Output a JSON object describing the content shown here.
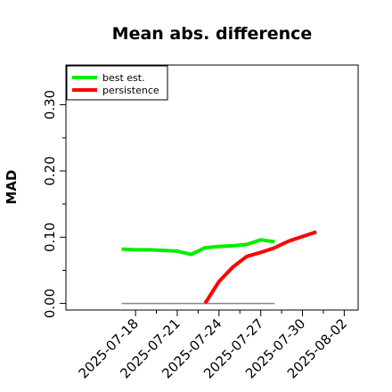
{
  "chart_data": {
    "type": "line",
    "title": "Mean abs. difference",
    "xlabel": "",
    "ylabel": "MAD",
    "x_ticks": [
      "2025-07-18",
      "2025-07-21",
      "2025-07-24",
      "2025-07-27",
      "2025-07-30",
      "2025-08-02"
    ],
    "y_ticks": [
      "0.00",
      "0.10",
      "0.20",
      "0.30"
    ],
    "xlim": [
      "2025-07-13",
      "2025-08-03"
    ],
    "ylim": [
      -0.01,
      0.36
    ],
    "legend_position": "top-left",
    "series": [
      {
        "name": "best est.",
        "color": "#00ee00",
        "points": [
          [
            "2025-07-17",
            0.082
          ],
          [
            "2025-07-18",
            0.081
          ],
          [
            "2025-07-19",
            0.081
          ],
          [
            "2025-07-20",
            0.08
          ],
          [
            "2025-07-21",
            0.079
          ],
          [
            "2025-07-22",
            0.074
          ],
          [
            "2025-07-23",
            0.084
          ],
          [
            "2025-07-24",
            0.086
          ],
          [
            "2025-07-25",
            0.087
          ],
          [
            "2025-07-26",
            0.089
          ],
          [
            "2025-07-27",
            0.096
          ],
          [
            "2025-07-28",
            0.093
          ]
        ]
      },
      {
        "name": "persistence",
        "color": "#ff0000",
        "points": [
          [
            "2025-07-23",
            0.0
          ],
          [
            "2025-07-24",
            0.033
          ],
          [
            "2025-07-25",
            0.055
          ],
          [
            "2025-07-26",
            0.071
          ],
          [
            "2025-07-27",
            0.077
          ],
          [
            "2025-07-28",
            0.084
          ],
          [
            "2025-07-29",
            0.094
          ],
          [
            "2025-07-30",
            0.101
          ],
          [
            "2025-07-31",
            0.108
          ]
        ]
      }
    ],
    "reference_line": {
      "y": 0.0,
      "from": "2025-07-17",
      "to": "2025-07-28",
      "color": "#888888"
    }
  }
}
